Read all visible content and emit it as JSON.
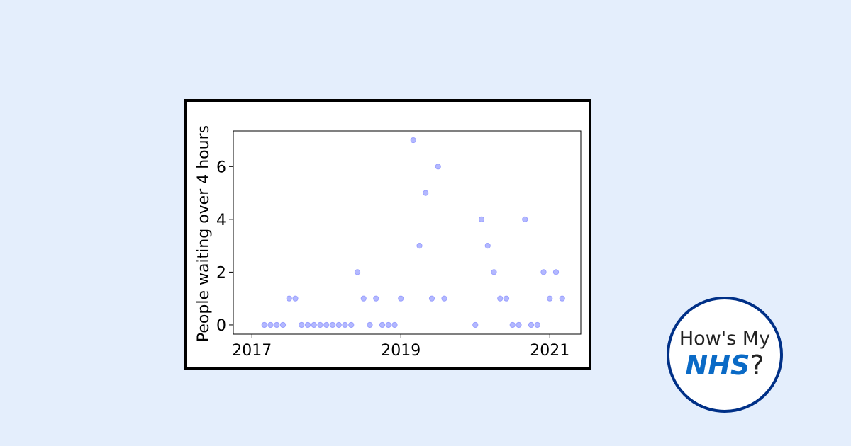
{
  "logo": {
    "line1": "How's My",
    "brand": "NHS",
    "suffix": "?",
    "brand_color": "#0a6ac6",
    "ring_color": "#003087"
  },
  "colors": {
    "background": "#e4eefc",
    "point_fill": "#b3b8ff",
    "point_stroke": "#9aa0ff"
  },
  "chart_data": {
    "type": "scatter",
    "title": "",
    "xlabel": "",
    "ylabel": "People waiting over 4 hours",
    "x_ticks": [
      "2017",
      "2019",
      "2021"
    ],
    "y_ticks": [
      0,
      2,
      4,
      6
    ],
    "xlim": [
      "2016-10",
      "2021-06"
    ],
    "ylim": [
      -0.35,
      7.35
    ],
    "grid": false,
    "legend": "none",
    "points": [
      {
        "x": "2017-03",
        "y": 0
      },
      {
        "x": "2017-04",
        "y": 0
      },
      {
        "x": "2017-05",
        "y": 0
      },
      {
        "x": "2017-06",
        "y": 0
      },
      {
        "x": "2017-07",
        "y": 1
      },
      {
        "x": "2017-08",
        "y": 1
      },
      {
        "x": "2017-09",
        "y": 0
      },
      {
        "x": "2017-10",
        "y": 0
      },
      {
        "x": "2017-11",
        "y": 0
      },
      {
        "x": "2017-12",
        "y": 0
      },
      {
        "x": "2018-01",
        "y": 0
      },
      {
        "x": "2018-02",
        "y": 0
      },
      {
        "x": "2018-03",
        "y": 0
      },
      {
        "x": "2018-04",
        "y": 0
      },
      {
        "x": "2018-05",
        "y": 0
      },
      {
        "x": "2018-06",
        "y": 2
      },
      {
        "x": "2018-07",
        "y": 1
      },
      {
        "x": "2018-08",
        "y": 0
      },
      {
        "x": "2018-09",
        "y": 1
      },
      {
        "x": "2018-10",
        "y": 0
      },
      {
        "x": "2018-11",
        "y": 0
      },
      {
        "x": "2018-12",
        "y": 0
      },
      {
        "x": "2019-01",
        "y": 1
      },
      {
        "x": "2019-03",
        "y": 7
      },
      {
        "x": "2019-04",
        "y": 3
      },
      {
        "x": "2019-05",
        "y": 5
      },
      {
        "x": "2019-06",
        "y": 1
      },
      {
        "x": "2019-07",
        "y": 6
      },
      {
        "x": "2019-08",
        "y": 1
      },
      {
        "x": "2020-01",
        "y": 0
      },
      {
        "x": "2020-02",
        "y": 4
      },
      {
        "x": "2020-03",
        "y": 3
      },
      {
        "x": "2020-04",
        "y": 2
      },
      {
        "x": "2020-05",
        "y": 1
      },
      {
        "x": "2020-06",
        "y": 1
      },
      {
        "x": "2020-07",
        "y": 0
      },
      {
        "x": "2020-08",
        "y": 0
      },
      {
        "x": "2020-09",
        "y": 4
      },
      {
        "x": "2020-10",
        "y": 0
      },
      {
        "x": "2020-11",
        "y": 0
      },
      {
        "x": "2020-12",
        "y": 2
      },
      {
        "x": "2021-01",
        "y": 1
      },
      {
        "x": "2021-02",
        "y": 2
      },
      {
        "x": "2021-03",
        "y": 1
      }
    ]
  }
}
